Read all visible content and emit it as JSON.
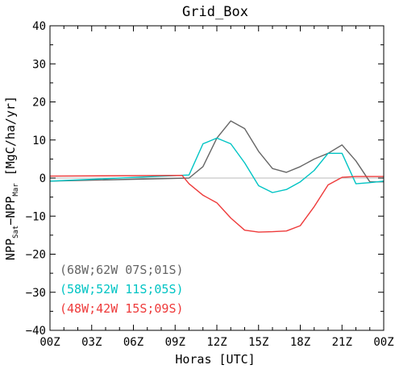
{
  "chart_data": {
    "type": "line",
    "title": "Grid_Box",
    "xlabel": "Horas [UTC]",
    "ylabel": {
      "main": "NPP",
      "sub1": "Sat",
      "dash": "−",
      "main2": "NPP",
      "sub2": "Mar",
      "unit": " [MgC/ha/yr]"
    },
    "xlim": [
      0,
      24
    ],
    "ylim": [
      -40,
      40
    ],
    "xticks": [
      {
        "value": 0,
        "label": "00Z"
      },
      {
        "value": 3,
        "label": "03Z"
      },
      {
        "value": 6,
        "label": "06Z"
      },
      {
        "value": 9,
        "label": "09Z"
      },
      {
        "value": 12,
        "label": "12Z"
      },
      {
        "value": 15,
        "label": "15Z"
      },
      {
        "value": 18,
        "label": "18Z"
      },
      {
        "value": 21,
        "label": "21Z"
      },
      {
        "value": 24,
        "label": "00Z"
      }
    ],
    "yticks": [
      {
        "value": 40,
        "label": "40"
      },
      {
        "value": 30,
        "label": "30"
      },
      {
        "value": 20,
        "label": "20"
      },
      {
        "value": 10,
        "label": "10"
      },
      {
        "value": 0,
        "label": "0"
      },
      {
        "value": -10,
        "label": "−10"
      },
      {
        "value": -20,
        "label": "−20"
      },
      {
        "value": -30,
        "label": "−30"
      },
      {
        "value": -40,
        "label": "−40"
      }
    ],
    "zero_line": true,
    "grid": false,
    "legend_position": "bottom-left",
    "series": [
      {
        "name": "(68W;62W 07S;01S)",
        "color": "#666666",
        "x": [
          0,
          10,
          11,
          12,
          13,
          14,
          15,
          16,
          17,
          18,
          19,
          20,
          21,
          22,
          23,
          24
        ],
        "y": [
          -0.8,
          0.0,
          3.0,
          10.5,
          15.0,
          13.0,
          7.0,
          2.5,
          1.5,
          3.0,
          5.0,
          6.5,
          8.7,
          4.5,
          -1.0,
          -1.0
        ]
      },
      {
        "name": "(58W;52W 11S;05S)",
        "color": "#00c4c4",
        "x": [
          0,
          10,
          11,
          12,
          13,
          14,
          15,
          16,
          17,
          18,
          19,
          20,
          21,
          22,
          23,
          24
        ],
        "y": [
          -0.8,
          0.8,
          9.0,
          10.5,
          9.0,
          4.0,
          -2.0,
          -3.8,
          -3.0,
          -1.0,
          2.0,
          6.5,
          6.5,
          -1.5,
          -1.2,
          -0.8
        ]
      },
      {
        "name": "(48W;42W 15S;09S)",
        "color": "#ee3a3a",
        "x": [
          0,
          9.5,
          10,
          11,
          12,
          13,
          14,
          15,
          16,
          17,
          18,
          19,
          20,
          21,
          22,
          23,
          24
        ],
        "y": [
          0.5,
          0.7,
          -1.5,
          -4.5,
          -6.5,
          -10.5,
          -13.7,
          -14.2,
          -14.1,
          -13.9,
          -12.5,
          -7.5,
          -1.8,
          0.2,
          0.4,
          0.4,
          0.4
        ]
      }
    ]
  }
}
